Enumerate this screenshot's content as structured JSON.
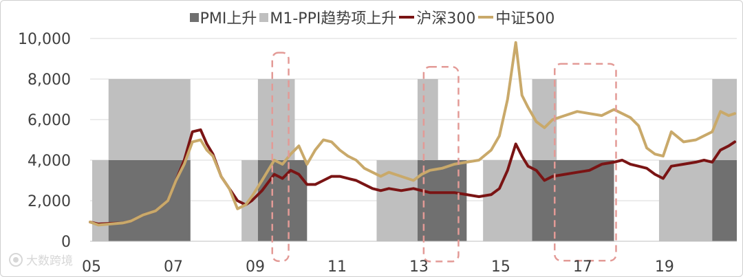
{
  "chart_data": {
    "type": "line",
    "title": "",
    "legend": [
      {
        "key": "pmi",
        "label": "PMI上升",
        "kind": "box",
        "color": "#707070"
      },
      {
        "key": "m1ppi",
        "label": "M1-PPI趋势项上升",
        "kind": "box",
        "color": "#bfbfbf"
      },
      {
        "key": "hs300",
        "label": "沪深300",
        "kind": "line",
        "color": "#7a1414"
      },
      {
        "key": "zz500",
        "label": "中证500",
        "kind": "line",
        "color": "#c9a96a"
      }
    ],
    "legend_position": "top",
    "x_range": [
      2005.0,
      2020.8
    ],
    "ylim": [
      0,
      10000
    ],
    "yticks": [
      {
        "value": 0,
        "label": "0"
      },
      {
        "value": 2000,
        "label": "2,000"
      },
      {
        "value": 4000,
        "label": "4,000"
      },
      {
        "value": 6000,
        "label": "6,000"
      },
      {
        "value": 8000,
        "label": "8,000"
      },
      {
        "value": 10000,
        "label": "10,000"
      }
    ],
    "xticks": [
      {
        "value": 2005.0,
        "label": "05"
      },
      {
        "value": 2007.0,
        "label": "07"
      },
      {
        "value": 2009.0,
        "label": "09"
      },
      {
        "value": 2011.0,
        "label": "11"
      },
      {
        "value": 2013.0,
        "label": "13"
      },
      {
        "value": 2015.0,
        "label": "15"
      },
      {
        "value": 2017.0,
        "label": "17"
      },
      {
        "value": 2019.0,
        "label": "19"
      }
    ],
    "grid": "horizontal",
    "m1ppi_periods": [
      [
        2005.05,
        2005.45
      ],
      [
        2005.45,
        2007.45
      ],
      [
        2008.7,
        2009.1
      ],
      [
        2009.1,
        2010.0
      ],
      [
        2012.0,
        2013.0
      ],
      [
        2013.0,
        2013.5
      ],
      [
        2014.6,
        2015.8
      ],
      [
        2015.8,
        2016.4
      ],
      [
        2018.9,
        2020.2
      ],
      [
        2020.2,
        2020.8
      ]
    ],
    "m1ppi_values": [
      4000,
      8000,
      4000,
      8000,
      4000,
      8000,
      4000,
      8000,
      4000,
      8000
    ],
    "pmi_periods": [
      [
        2005.45,
        2007.45
      ],
      [
        2009.1,
        2010.3
      ],
      [
        2013.0,
        2014.2
      ],
      [
        2015.8,
        2017.8
      ],
      [
        2020.2,
        2020.8
      ]
    ],
    "pmi_value": 4000,
    "highlight_periods": [
      [
        2009.45,
        2009.85,
        0.04,
        9.3
      ],
      [
        2013.15,
        2014.0,
        0.02,
        8.6
      ],
      [
        2016.35,
        2017.85,
        0.06,
        8.75
      ]
    ],
    "series": [
      {
        "name": "沪深300",
        "color": "#7a1414",
        "x": [
          2005.0,
          2005.2,
          2005.5,
          2005.8,
          2006.0,
          2006.3,
          2006.6,
          2006.9,
          2007.1,
          2007.3,
          2007.5,
          2007.7,
          2007.85,
          2008.0,
          2008.2,
          2008.4,
          2008.6,
          2008.8,
          2008.95,
          2009.2,
          2009.5,
          2009.7,
          2009.9,
          2010.1,
          2010.3,
          2010.5,
          2010.7,
          2010.9,
          2011.1,
          2011.3,
          2011.5,
          2011.7,
          2011.9,
          2012.1,
          2012.3,
          2012.6,
          2012.9,
          2013.1,
          2013.3,
          2013.6,
          2013.9,
          2014.2,
          2014.5,
          2014.8,
          2015.0,
          2015.2,
          2015.4,
          2015.55,
          2015.7,
          2015.9,
          2016.1,
          2016.3,
          2016.6,
          2016.9,
          2017.2,
          2017.5,
          2017.8,
          2018.0,
          2018.2,
          2018.4,
          2018.6,
          2018.8,
          2019.0,
          2019.2,
          2019.5,
          2019.8,
          2020.0,
          2020.2,
          2020.4,
          2020.6,
          2020.75
        ],
        "values": [
          950,
          850,
          880,
          900,
          1000,
          1300,
          1500,
          2000,
          3000,
          4000,
          5400,
          5500,
          4800,
          4300,
          3200,
          2600,
          2000,
          1800,
          2000,
          2500,
          3300,
          3100,
          3500,
          3300,
          2800,
          2800,
          3000,
          3200,
          3200,
          3100,
          3000,
          2800,
          2600,
          2500,
          2600,
          2500,
          2600,
          2500,
          2400,
          2400,
          2400,
          2300,
          2200,
          2300,
          2600,
          3500,
          4800,
          4200,
          3700,
          3500,
          3000,
          3200,
          3300,
          3400,
          3500,
          3800,
          3900,
          4000,
          3800,
          3700,
          3600,
          3300,
          3100,
          3700,
          3800,
          3900,
          4000,
          3900,
          4500,
          4700,
          4900
        ]
      },
      {
        "name": "中证500",
        "color": "#c9a96a",
        "x": [
          2005.0,
          2005.2,
          2005.5,
          2005.8,
          2006.0,
          2006.3,
          2006.6,
          2006.9,
          2007.1,
          2007.3,
          2007.5,
          2007.7,
          2007.85,
          2008.0,
          2008.2,
          2008.4,
          2008.6,
          2008.8,
          2008.95,
          2009.2,
          2009.5,
          2009.7,
          2009.9,
          2010.1,
          2010.3,
          2010.5,
          2010.7,
          2010.9,
          2011.1,
          2011.3,
          2011.5,
          2011.7,
          2011.9,
          2012.1,
          2012.3,
          2012.6,
          2012.9,
          2013.1,
          2013.3,
          2013.6,
          2013.9,
          2014.2,
          2014.5,
          2014.8,
          2015.0,
          2015.2,
          2015.4,
          2015.55,
          2015.7,
          2015.9,
          2016.1,
          2016.3,
          2016.6,
          2016.9,
          2017.2,
          2017.5,
          2017.8,
          2018.0,
          2018.2,
          2018.4,
          2018.6,
          2018.8,
          2019.0,
          2019.2,
          2019.5,
          2019.8,
          2020.0,
          2020.2,
          2020.4,
          2020.6,
          2020.75
        ],
        "values": [
          950,
          800,
          850,
          900,
          1000,
          1300,
          1500,
          2000,
          3000,
          3800,
          4900,
          5000,
          4500,
          4200,
          3200,
          2600,
          1600,
          1800,
          2200,
          3000,
          4000,
          3800,
          4300,
          4700,
          3800,
          4500,
          5000,
          4900,
          4500,
          4200,
          4000,
          3600,
          3400,
          3200,
          3400,
          3200,
          3000,
          3300,
          3500,
          3600,
          3800,
          3900,
          4000,
          4500,
          5200,
          7000,
          9800,
          7200,
          6600,
          5900,
          5600,
          6000,
          6200,
          6400,
          6300,
          6200,
          6500,
          6300,
          6100,
          5700,
          4600,
          4300,
          4200,
          5400,
          4900,
          5000,
          5200,
          5400,
          6400,
          6200,
          6300
        ]
      }
    ]
  },
  "watermark": {
    "text": "大数跨境"
  }
}
